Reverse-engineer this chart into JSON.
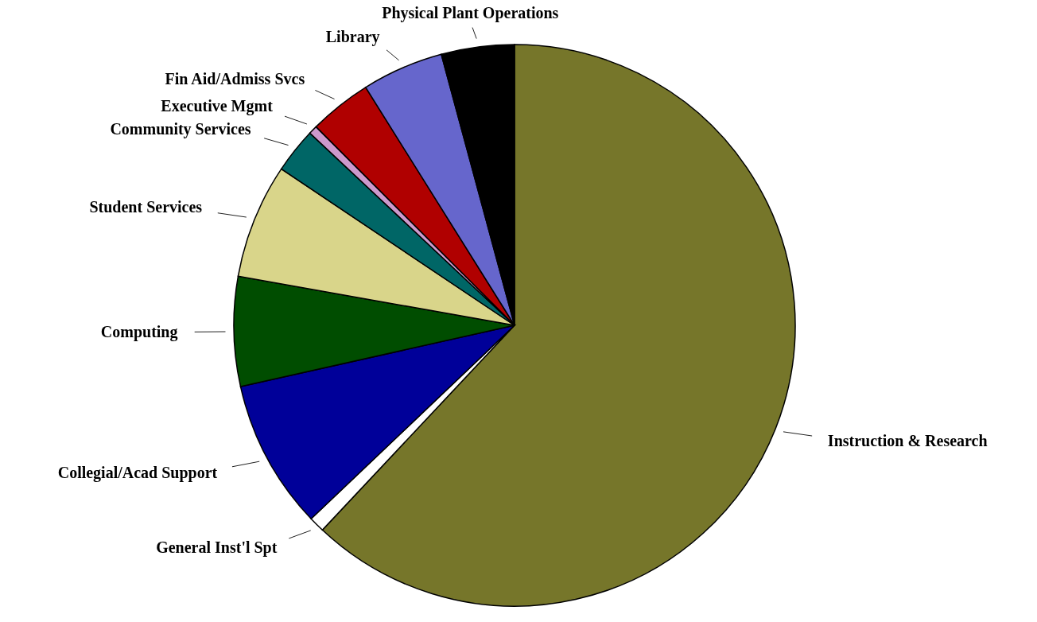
{
  "chart_data": {
    "type": "pie",
    "categories": [
      "Instruction & Research",
      "General Inst'l Spt",
      "Collegial/Acad Support",
      "Computing",
      "Student Services",
      "Community Services",
      "Executive Mgmt",
      "Fin Aid/Admiss Svcs",
      "Library",
      "Physical Plant Operations"
    ],
    "values": [
      62.0,
      0.9,
      8.6,
      6.3,
      6.6,
      2.6,
      0.5,
      3.6,
      4.7,
      4.2
    ],
    "colors": [
      "#76762a",
      "#ffffff",
      "#000099",
      "#004d00",
      "#d9d58a",
      "#006666",
      "#cc99cc",
      "#b00000",
      "#6666cc",
      "#000000"
    ]
  }
}
